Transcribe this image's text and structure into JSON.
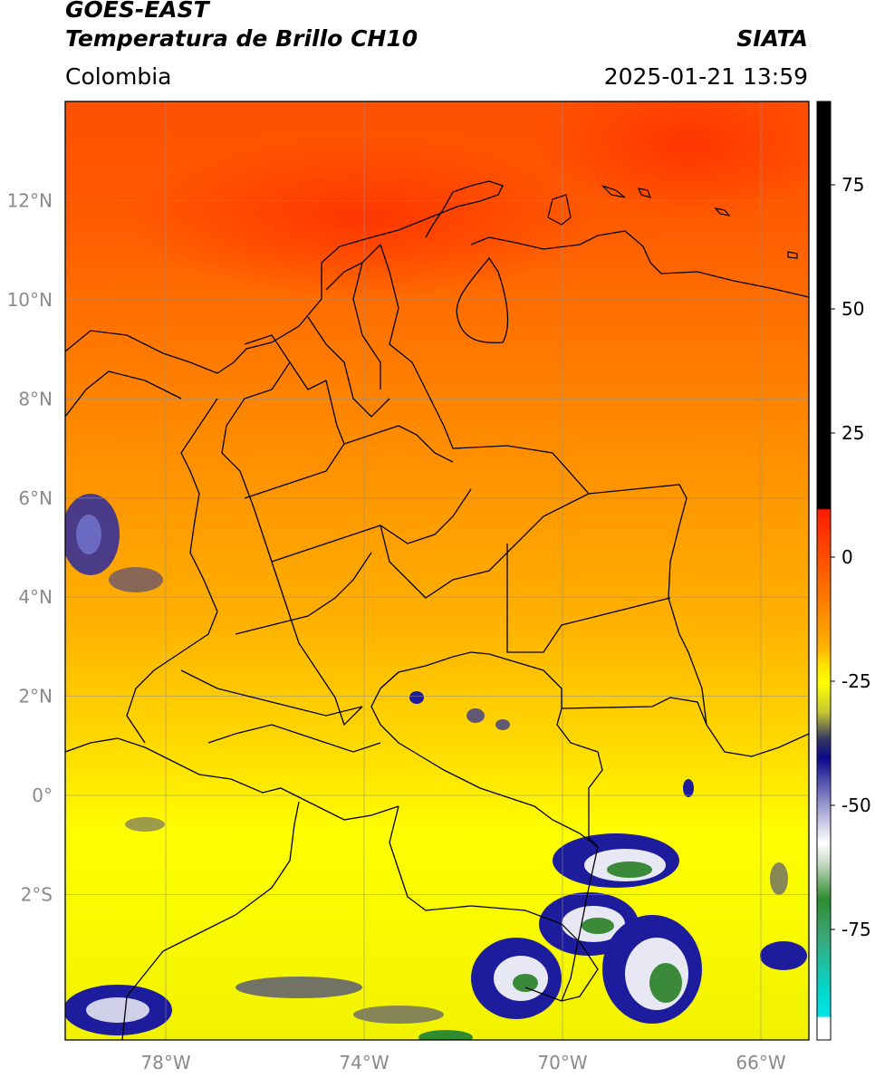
{
  "header": {
    "satellite": "GOES-EAST",
    "product": "Temperatura de Brillo CH10",
    "region": "Colombia",
    "agency": "SIATA",
    "datetime": "2025-01-21 13:59"
  },
  "map": {
    "lat_ticks": [
      {
        "label": "12°N",
        "value": 12
      },
      {
        "label": "10°N",
        "value": 10
      },
      {
        "label": "8°N",
        "value": 8
      },
      {
        "label": "6°N",
        "value": 6
      },
      {
        "label": "4°N",
        "value": 4
      },
      {
        "label": "2°N",
        "value": 2
      },
      {
        "label": "0°",
        "value": 0
      },
      {
        "label": "2°S",
        "value": -2
      }
    ],
    "lon_ticks": [
      {
        "label": "78°W",
        "value": -78
      },
      {
        "label": "74°W",
        "value": -74
      },
      {
        "label": "70°W",
        "value": -70
      },
      {
        "label": "66°W",
        "value": -66
      }
    ],
    "gridlines": true
  },
  "colorbar": {
    "ticks": [
      "75",
      "50",
      "25",
      "0",
      "-25",
      "-50",
      "-75"
    ],
    "colors": {
      "black": "#000000",
      "red": "#ff1a00",
      "orange": "#ff8c00",
      "yellow": "#ffff00",
      "olive": "#c8c832",
      "dark_blue": "#0a0a8c",
      "white": "#ffffff",
      "green": "#2e8b2e",
      "cyan": "#00e5e5"
    }
  }
}
